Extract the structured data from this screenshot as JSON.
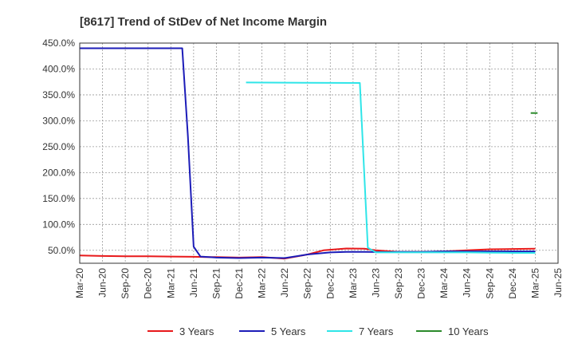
{
  "chart_data": {
    "type": "line",
    "title": "[8617]  Trend of StDev of Net Income Margin",
    "xlabel": "",
    "ylabel": "",
    "ylim": [
      25,
      450
    ],
    "grid": true,
    "legend_position": "bottom",
    "y_ticks": [
      {
        "value": 450,
        "label": "450.0%"
      },
      {
        "value": 400,
        "label": "400.0%"
      },
      {
        "value": 350,
        "label": "350.0%"
      },
      {
        "value": 300,
        "label": "300.0%"
      },
      {
        "value": 250,
        "label": "250.0%"
      },
      {
        "value": 200,
        "label": "200.0%"
      },
      {
        "value": 150,
        "label": "150.0%"
      },
      {
        "value": 100,
        "label": "100.0%"
      },
      {
        "value": 50,
        "label": "50.0%"
      }
    ],
    "x_ticks": [
      "Mar-20",
      "Jun-20",
      "Sep-20",
      "Dec-20",
      "Mar-21",
      "Jun-21",
      "Sep-21",
      "Dec-21",
      "Mar-22",
      "Jun-22",
      "Sep-22",
      "Dec-22",
      "Mar-23",
      "Jun-23",
      "Sep-23",
      "Dec-23",
      "Mar-24",
      "Jun-24",
      "Sep-24",
      "Dec-24",
      "Mar-25",
      "Jun-25"
    ],
    "series": [
      {
        "name": "3 Years",
        "color": "#e8191b",
        "points": [
          [
            0,
            40
          ],
          [
            1,
            39
          ],
          [
            2,
            38.5
          ],
          [
            3,
            38.5
          ],
          [
            4,
            38
          ],
          [
            5,
            37.5
          ],
          [
            5.5,
            37
          ],
          [
            6,
            37
          ],
          [
            7,
            36
          ],
          [
            8,
            37
          ],
          [
            9,
            34
          ],
          [
            10,
            42
          ],
          [
            10.7,
            50
          ],
          [
            11.7,
            53.5
          ],
          [
            12.5,
            53
          ],
          [
            13,
            50
          ],
          [
            14,
            47
          ],
          [
            15,
            47
          ],
          [
            16,
            48
          ],
          [
            17,
            50
          ],
          [
            18,
            52
          ],
          [
            19,
            52.5
          ],
          [
            20,
            53
          ]
        ]
      },
      {
        "name": "5 Years",
        "color": "#1c1cb8",
        "points": [
          [
            0,
            440
          ],
          [
            4.5,
            440
          ],
          [
            4.75,
            270
          ],
          [
            5,
            57
          ],
          [
            5.3,
            38
          ],
          [
            6,
            36
          ],
          [
            7,
            35
          ],
          [
            8,
            36
          ],
          [
            9,
            35
          ],
          [
            10,
            42
          ],
          [
            11,
            46
          ],
          [
            11.7,
            47
          ],
          [
            12.5,
            47
          ],
          [
            13.5,
            46.5
          ],
          [
            14,
            47
          ],
          [
            15,
            47
          ],
          [
            16,
            48
          ],
          [
            17,
            48
          ],
          [
            18,
            48
          ],
          [
            19,
            48
          ],
          [
            20,
            48
          ]
        ]
      },
      {
        "name": "7 Years",
        "color": "#2fe5e8",
        "points": [
          [
            7.3,
            374
          ],
          [
            12.3,
            373
          ],
          [
            12.65,
            55
          ],
          [
            13,
            46
          ],
          [
            14,
            46
          ],
          [
            15,
            46
          ],
          [
            16,
            46
          ],
          [
            17,
            46
          ],
          [
            18,
            45.5
          ],
          [
            19,
            45
          ],
          [
            20,
            45
          ]
        ]
      },
      {
        "name": "10 Years",
        "color": "#2b8a2b",
        "points": [
          [
            19.8,
            315
          ],
          [
            20.1,
            315
          ]
        ]
      }
    ]
  }
}
